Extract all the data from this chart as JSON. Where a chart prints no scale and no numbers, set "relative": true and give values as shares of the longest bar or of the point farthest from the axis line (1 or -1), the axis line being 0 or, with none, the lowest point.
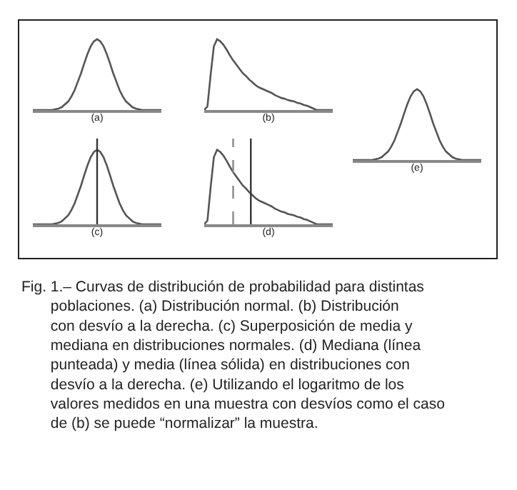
{
  "chart_data": [
    {
      "type": "line",
      "xlabel": "(a)",
      "relative": true,
      "tick_labels": false,
      "color": "#555555",
      "categories": [
        null,
        null,
        null,
        null,
        null,
        null,
        null,
        null,
        null,
        null,
        null,
        null,
        null,
        null,
        null,
        null,
        null,
        null,
        null,
        null,
        null,
        null,
        null,
        null,
        null,
        null,
        null,
        null,
        null,
        null,
        null,
        null,
        null,
        null,
        null,
        null,
        null,
        null,
        null,
        null,
        null
      ],
      "values": [
        0,
        0,
        0,
        0,
        0,
        0,
        0,
        0.01,
        0.02,
        0.04,
        0.08,
        0.12,
        0.19,
        0.28,
        0.4,
        0.52,
        0.66,
        0.79,
        0.9,
        0.97,
        1,
        0.97,
        0.9,
        0.79,
        0.66,
        0.52,
        0.4,
        0.28,
        0.19,
        0.12,
        0.08,
        0.04,
        0.02,
        0.01,
        0,
        0,
        0,
        0,
        0,
        0,
        0
      ]
    },
    {
      "type": "line",
      "xlabel": "(b)",
      "relative": true,
      "tick_labels": false,
      "color": "#555555",
      "categories": [
        null,
        null,
        null,
        null,
        null,
        null,
        null,
        null,
        null,
        null,
        null,
        null,
        null,
        null,
        null,
        null,
        null,
        null,
        null,
        null,
        null,
        null,
        null,
        null,
        null,
        null,
        null,
        null,
        null,
        null,
        null,
        null,
        null,
        null,
        null,
        null,
        null,
        null,
        null,
        null,
        null
      ],
      "values": [
        0,
        0.05,
        0.5,
        0.9,
        1,
        0.97,
        0.92,
        0.85,
        0.77,
        0.7,
        0.64,
        0.58,
        0.52,
        0.48,
        0.43,
        0.39,
        0.35,
        0.32,
        0.3,
        0.28,
        0.26,
        0.24,
        0.21,
        0.19,
        0.17,
        0.16,
        0.14,
        0.13,
        0.12,
        0.1,
        0.09,
        0.07,
        0.06,
        0.04,
        0.02,
        0,
        0,
        0,
        0,
        0,
        0
      ]
    },
    {
      "type": "line",
      "xlabel": "(c)",
      "relative": true,
      "tick_labels": false,
      "color": "#555555",
      "categories": [
        null,
        null,
        null,
        null,
        null,
        null,
        null,
        null,
        null,
        null,
        null,
        null,
        null,
        null,
        null,
        null,
        null,
        null,
        null,
        null,
        null,
        null,
        null,
        null,
        null,
        null,
        null,
        null,
        null,
        null,
        null,
        null,
        null,
        null,
        null,
        null,
        null,
        null,
        null,
        null,
        null
      ],
      "values": [
        0,
        0,
        0,
        0,
        0,
        0,
        0,
        0.01,
        0.02,
        0.04,
        0.08,
        0.12,
        0.19,
        0.28,
        0.4,
        0.52,
        0.66,
        0.79,
        0.9,
        0.97,
        1,
        0.97,
        0.9,
        0.79,
        0.66,
        0.52,
        0.4,
        0.28,
        0.19,
        0.12,
        0.08,
        0.04,
        0.02,
        0.01,
        0,
        0,
        0,
        0,
        0,
        0,
        0
      ]
    },
    {
      "type": "line",
      "xlabel": "(d)",
      "relative": true,
      "tick_labels": false,
      "color": "#555555",
      "categories": [
        null,
        null,
        null,
        null,
        null,
        null,
        null,
        null,
        null,
        null,
        null,
        null,
        null,
        null,
        null,
        null,
        null,
        null,
        null,
        null,
        null,
        null,
        null,
        null,
        null,
        null,
        null,
        null,
        null,
        null,
        null,
        null,
        null,
        null,
        null,
        null,
        null,
        null,
        null,
        null,
        null
      ],
      "values": [
        0,
        0.05,
        0.5,
        0.9,
        1,
        0.97,
        0.92,
        0.85,
        0.77,
        0.7,
        0.64,
        0.58,
        0.52,
        0.48,
        0.43,
        0.39,
        0.35,
        0.32,
        0.3,
        0.28,
        0.26,
        0.24,
        0.21,
        0.19,
        0.17,
        0.16,
        0.14,
        0.13,
        0.12,
        0.1,
        0.09,
        0.07,
        0.06,
        0.04,
        0.02,
        0,
        0,
        0,
        0,
        0,
        0
      ]
    },
    {
      "type": "line",
      "xlabel": "(e)",
      "relative": true,
      "tick_labels": false,
      "color": "#555555",
      "categories": [
        null,
        null,
        null,
        null,
        null,
        null,
        null,
        null,
        null,
        null,
        null,
        null,
        null,
        null,
        null,
        null,
        null,
        null,
        null,
        null,
        null,
        null,
        null,
        null,
        null,
        null,
        null,
        null,
        null,
        null,
        null,
        null,
        null,
        null,
        null,
        null,
        null,
        null,
        null,
        null,
        null
      ],
      "values": [
        0,
        0,
        0,
        0,
        0,
        0,
        0,
        0.01,
        0.02,
        0.04,
        0.08,
        0.12,
        0.19,
        0.28,
        0.4,
        0.52,
        0.66,
        0.79,
        0.9,
        0.97,
        1,
        0.97,
        0.9,
        0.79,
        0.66,
        0.52,
        0.4,
        0.28,
        0.19,
        0.12,
        0.08,
        0.04,
        0.02,
        0.01,
        0,
        0,
        0,
        0,
        0,
        0,
        0
      ]
    },
    {
      "type": "other",
      "annotations": [
        "Fig. 1.– Curvas de distribución de probabilidad para distintas poblaciones. (a) Distribución normal. (b) Distribución con desvío a la derecha. (c) Superposición de media y mediana en distribuciones normales. (d) Mediana (línea punteada) y media (línea sólida) en distribuciones con desvío a la derecha. (e) Utilizando el logaritmo de los valores medidos en una muestra con desvíos como el caso de (b) se puede “normalizar” la muestra."
      ]
    }
  ]
}
